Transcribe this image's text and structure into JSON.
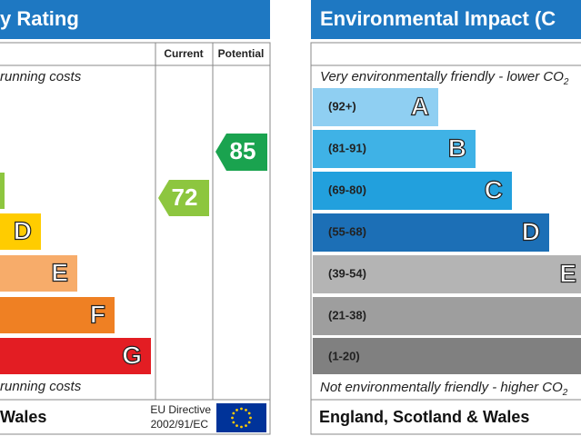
{
  "energy_rating": {
    "title": "y Rating",
    "columns": [
      "Current",
      "Potential"
    ],
    "top_note": "running costs",
    "bands": [
      "D",
      "E",
      "F",
      "G"
    ],
    "current": 72,
    "potential": 85,
    "bottom_note": "running costs",
    "footer": {
      "region": "Wales",
      "directive": [
        "EU Directive",
        "2002/91/EC"
      ]
    }
  },
  "environmental_impact": {
    "title": "Environmental Impact (C",
    "top_note": "Very environmentally friendly - lower CO",
    "top_note_sub": "2",
    "bands": [
      {
        "range": "(92+)",
        "letter": "A"
      },
      {
        "range": "(81-91)",
        "letter": "B"
      },
      {
        "range": "(69-80)",
        "letter": "C"
      },
      {
        "range": "(55-68)",
        "letter": "D"
      },
      {
        "range": "(39-54)",
        "letter": "E"
      },
      {
        "range": "(21-38)"
      },
      {
        "range": "(1-20)"
      }
    ],
    "bottom_note": "Not environmentally friendly - higher CO",
    "bottom_note_sub": "2",
    "footer": "England, Scotland & Wales"
  }
}
